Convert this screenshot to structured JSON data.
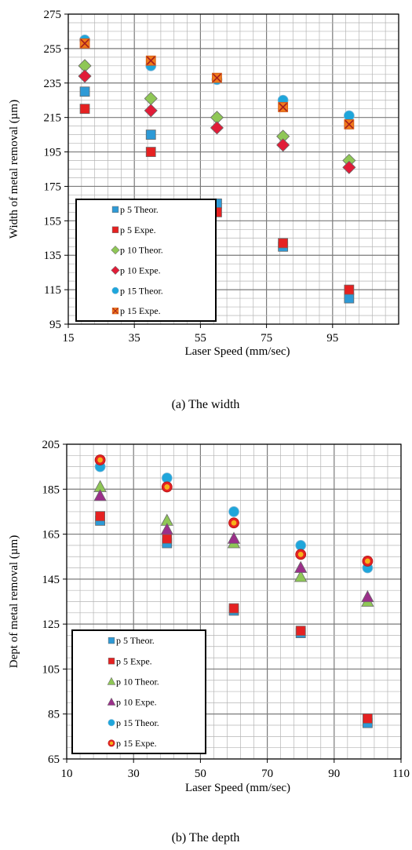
{
  "chart_data": [
    {
      "type": "scatter",
      "caption": "(a) The width",
      "xlabel": "Laser Speed (mm/sec)",
      "ylabel": "Width of metal removal (µm)",
      "xlim": [
        15,
        115
      ],
      "ylim": [
        95,
        275
      ],
      "xticks": [
        15,
        35,
        55,
        75,
        95
      ],
      "yticks": [
        95,
        115,
        135,
        155,
        175,
        195,
        215,
        235,
        255,
        275
      ],
      "grid": true,
      "legend_position": "bottom-left",
      "series": [
        {
          "name": "p 5  Theor.",
          "marker": "square",
          "color": "#2e9ad6",
          "x": [
            20,
            40,
            60,
            80,
            100
          ],
          "y": [
            230,
            205,
            165,
            140,
            110
          ]
        },
        {
          "name": "p 5  Expe.",
          "marker": "square",
          "color": "#e52121",
          "x": [
            20,
            40,
            60,
            80,
            100
          ],
          "y": [
            220,
            195,
            160,
            142,
            115
          ]
        },
        {
          "name": "p 10  Theor.",
          "marker": "diamond",
          "color": "#8fc756",
          "x": [
            20,
            40,
            60,
            80,
            100
          ],
          "y": [
            245,
            226,
            215,
            204,
            190
          ]
        },
        {
          "name": "p 10  Expe.",
          "marker": "diamond",
          "color": "#e11c38",
          "x": [
            20,
            40,
            60,
            80,
            100
          ],
          "y": [
            239,
            219,
            209,
            199,
            186
          ]
        },
        {
          "name": "p 15  Theor.",
          "marker": "circle",
          "color": "#1fa6db",
          "x": [
            20,
            40,
            60,
            80,
            100
          ],
          "y": [
            260,
            245,
            237,
            225,
            216
          ]
        },
        {
          "name": "p 15  Expe.",
          "marker": "xsquare",
          "color": "#f07b1a",
          "x": [
            20,
            40,
            60,
            80,
            100
          ],
          "y": [
            258,
            248,
            238,
            221,
            211
          ]
        }
      ]
    },
    {
      "type": "scatter",
      "caption": "(b) The depth",
      "xlabel": "Laser Speed (mm/sec)",
      "ylabel": "Dept of metal removal (µm)",
      "xlim": [
        10,
        110
      ],
      "ylim": [
        65,
        205
      ],
      "xticks": [
        10,
        30,
        50,
        70,
        90,
        110
      ],
      "yticks": [
        65,
        85,
        105,
        125,
        145,
        165,
        185,
        205
      ],
      "grid": true,
      "legend_position": "bottom-left",
      "series": [
        {
          "name": "p 5  Theor.",
          "marker": "square",
          "color": "#2e9ad6",
          "x": [
            20,
            40,
            60,
            80,
            100
          ],
          "y": [
            171,
            161,
            131,
            121,
            81
          ]
        },
        {
          "name": "p 5  Expe.",
          "marker": "square",
          "color": "#e52121",
          "x": [
            20,
            40,
            60,
            80,
            100
          ],
          "y": [
            173,
            163,
            132,
            122,
            83
          ]
        },
        {
          "name": "p 10  Theor.",
          "marker": "triangle",
          "color": "#8fc756",
          "x": [
            20,
            40,
            60,
            80,
            100
          ],
          "y": [
            186,
            171,
            161,
            146,
            135
          ]
        },
        {
          "name": "p 10  Expe.",
          "marker": "triangle",
          "color": "#9b2f8a",
          "x": [
            20,
            40,
            60,
            80,
            100
          ],
          "y": [
            182,
            167,
            163,
            150,
            137
          ]
        },
        {
          "name": "p 15  Theor.",
          "marker": "circle",
          "color": "#1fa6db",
          "x": [
            20,
            40,
            60,
            80,
            100
          ],
          "y": [
            195,
            190,
            175,
            160,
            150
          ]
        },
        {
          "name": "p 15  Expe.",
          "marker": "dotcircle",
          "color": "#e52121",
          "x": [
            20,
            40,
            60,
            80,
            100
          ],
          "y": [
            198,
            186,
            170,
            156,
            153
          ]
        }
      ]
    }
  ]
}
